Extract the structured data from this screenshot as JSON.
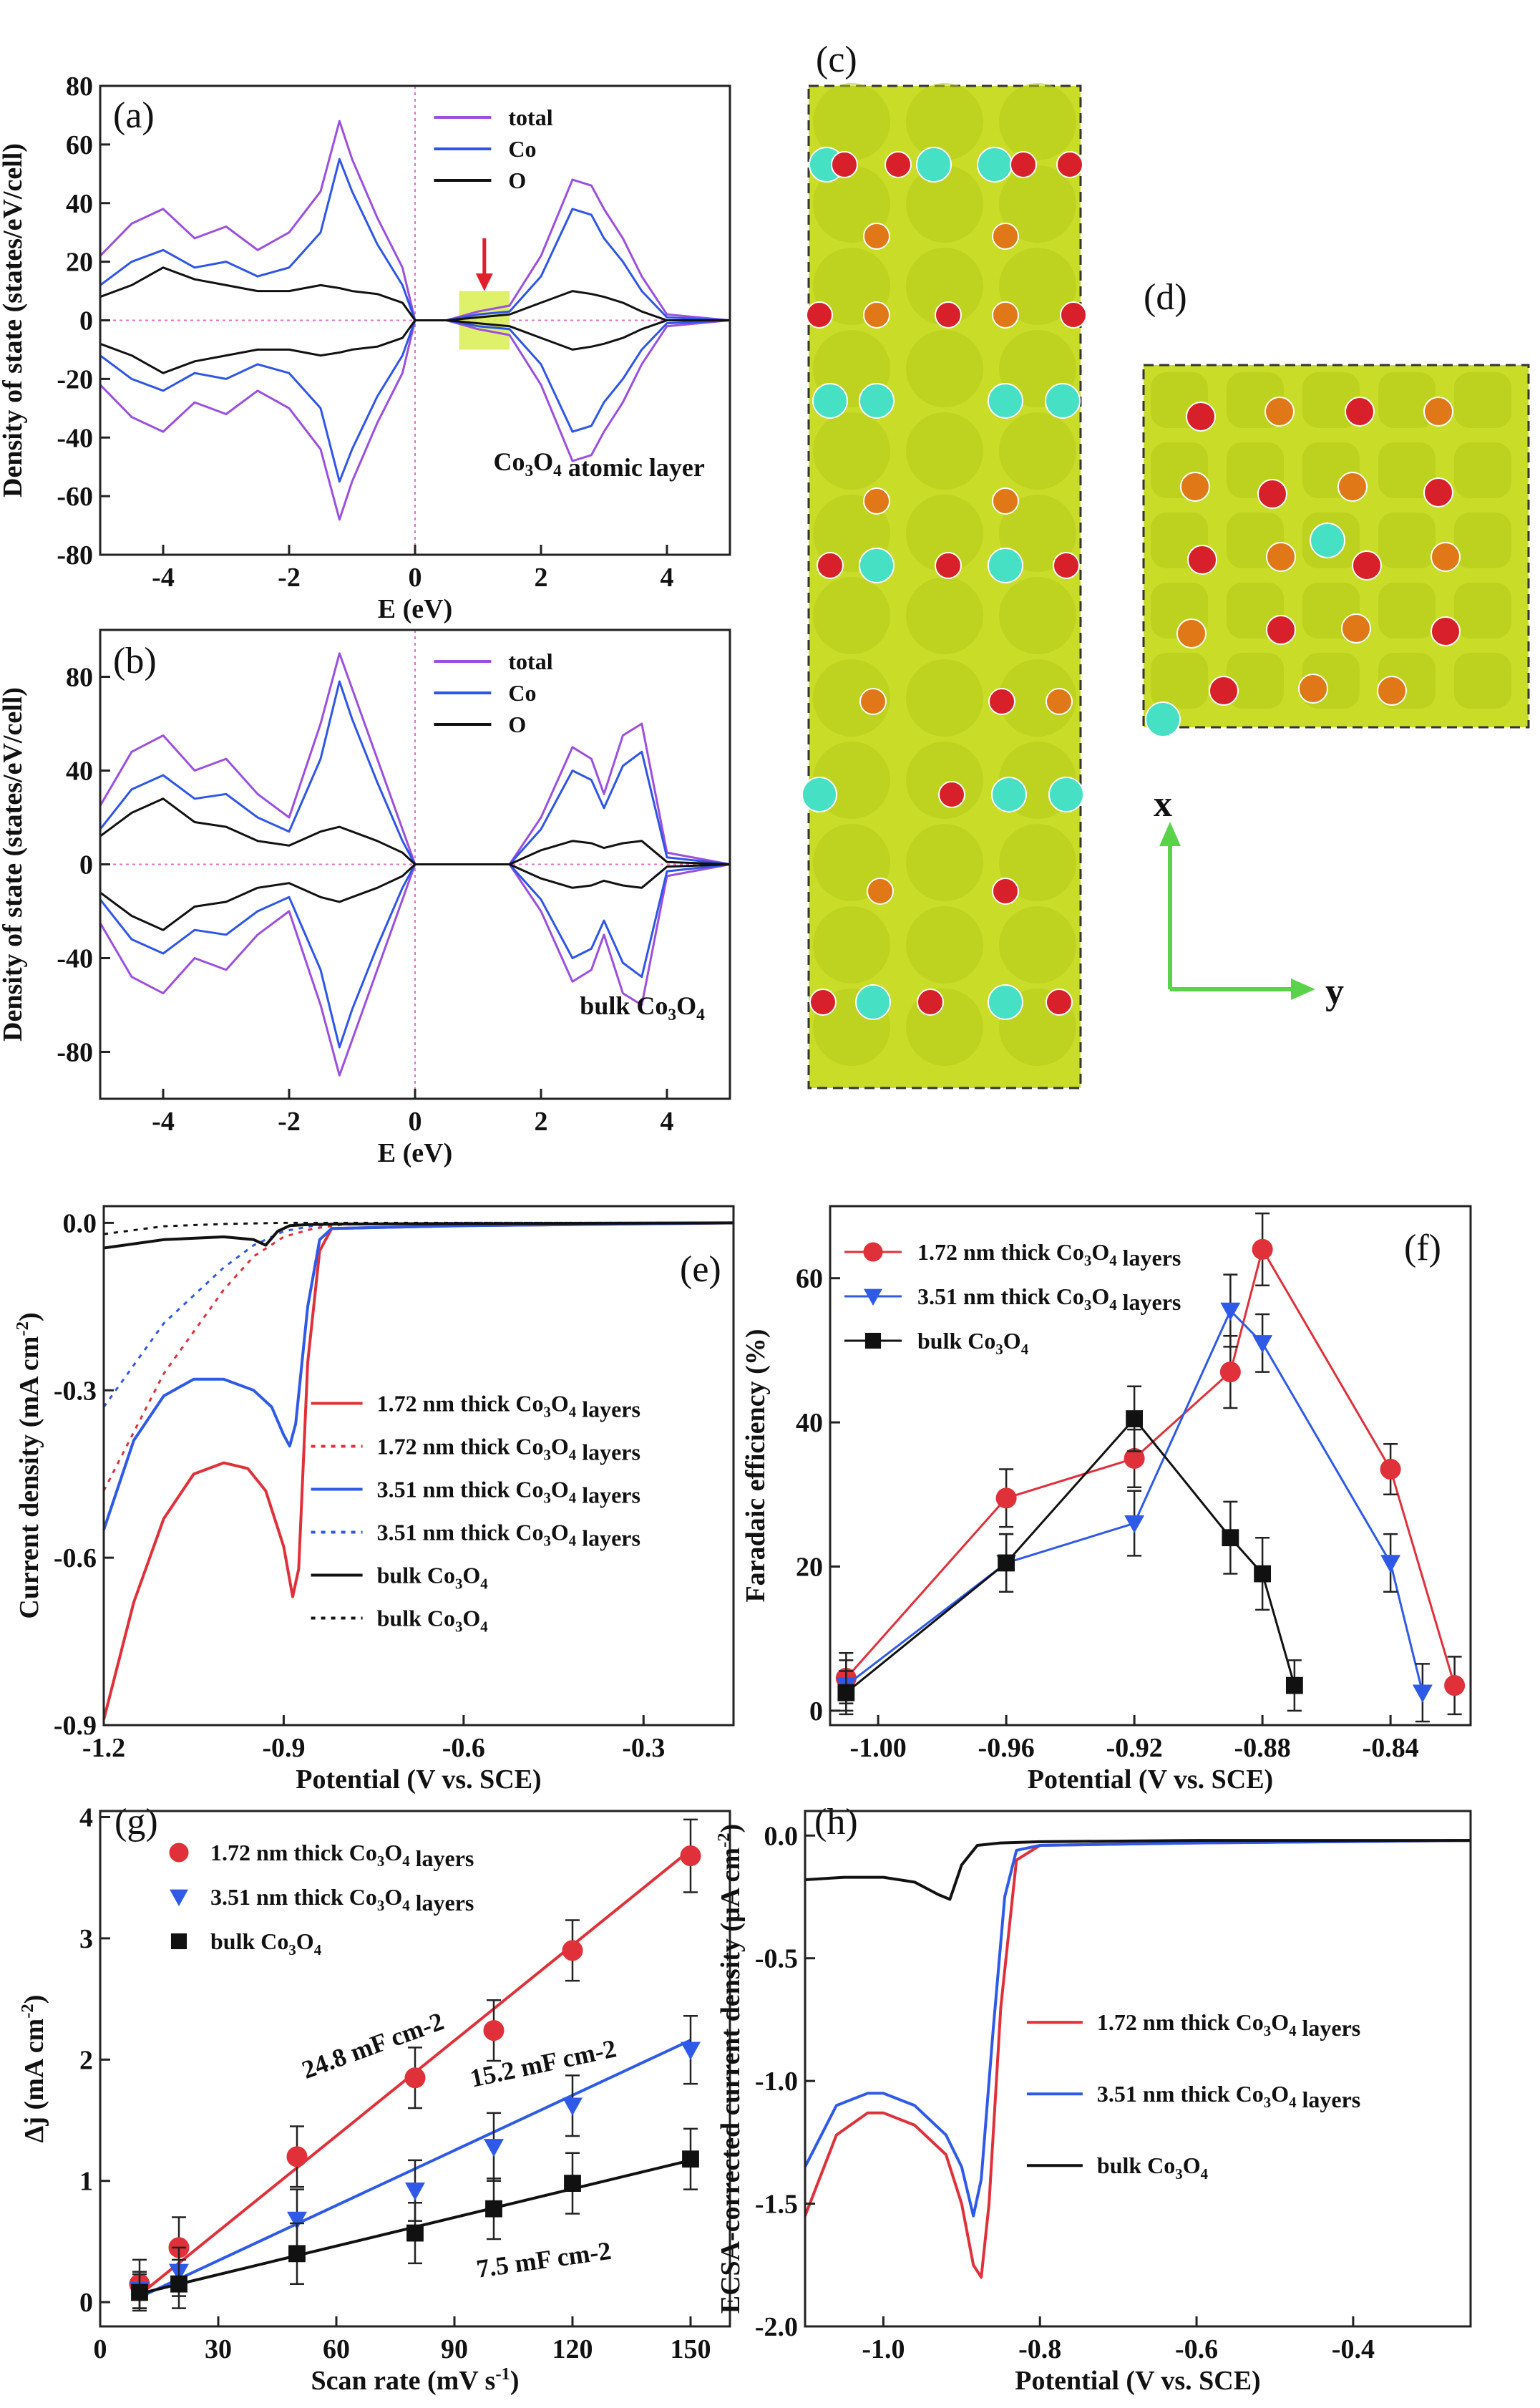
{
  "colors": {
    "total": "#9b4fe0",
    "co": "#2f55e8",
    "o": "#111111",
    "red": "#e0303a",
    "blue": "#2f5ae8",
    "black": "#111111",
    "iso": "#c8dc28",
    "co_atom": "#46e0c4",
    "o_atom": "#d8202a",
    "orange_atom": "#e07818",
    "axis_green": "#5ad24a"
  },
  "panels": {
    "a": "(a)",
    "b": "(b)",
    "c": "(c)",
    "d": "(d)",
    "e": "(e)",
    "f": "(f)",
    "g": "(g)",
    "h": "(h)"
  },
  "structure": {
    "x_axis": "x",
    "y_axis": "y",
    "panel_c": "Charge density isosurface, side view",
    "panel_d": "Charge density isosurface, top view"
  },
  "chart_data": [
    {
      "id": "a",
      "type": "line",
      "xlabel": "E (eV)",
      "ylabel": "Density of state (states/eV/cell)",
      "xlim": [
        -5,
        5
      ],
      "ylim": [
        -80,
        80
      ],
      "xticks": [
        "-4",
        "-2",
        "0",
        "2",
        "4"
      ],
      "yticks": [
        "-80",
        "-60",
        "-40",
        "-20",
        "0",
        "20",
        "40",
        "60",
        "80"
      ],
      "tick_values_y": [
        -80,
        -60,
        -40,
        -20,
        0,
        20,
        40,
        60,
        80
      ],
      "legend": [
        "total",
        "Co",
        "O"
      ],
      "annotation": "Co3O4 atomic layer",
      "annotation_parts": [
        "Co",
        "3",
        "O",
        "4",
        " atomic layer"
      ],
      "highlight_range": [
        0.7,
        1.5
      ],
      "series": [
        {
          "name": "total",
          "x": [
            -5,
            -4.5,
            -4,
            -3.5,
            -3,
            -2.5,
            -2,
            -1.5,
            -1.2,
            -1,
            -0.6,
            -0.2,
            0,
            0.5,
            1,
            1.5,
            2,
            2.5,
            2.8,
            3,
            3.3,
            3.6,
            4,
            5
          ],
          "values": [
            22,
            33,
            38,
            28,
            32,
            24,
            30,
            44,
            68,
            55,
            35,
            18,
            0,
            0,
            3,
            5,
            22,
            48,
            46,
            38,
            28,
            15,
            2,
            0
          ]
        },
        {
          "name": "Co",
          "x": [
            -5,
            -4.5,
            -4,
            -3.5,
            -3,
            -2.5,
            -2,
            -1.5,
            -1.2,
            -1,
            -0.6,
            -0.2,
            0,
            0.5,
            1,
            1.5,
            2,
            2.5,
            2.8,
            3,
            3.3,
            3.6,
            4,
            5
          ],
          "values": [
            12,
            20,
            24,
            18,
            20,
            15,
            18,
            30,
            55,
            44,
            26,
            12,
            0,
            0,
            2,
            3,
            15,
            38,
            36,
            28,
            20,
            10,
            1,
            0
          ]
        },
        {
          "name": "O",
          "x": [
            -5,
            -4.5,
            -4,
            -3.5,
            -3,
            -2.5,
            -2,
            -1.5,
            -1.2,
            -1,
            -0.6,
            -0.2,
            0,
            0.5,
            1,
            1.5,
            2,
            2.5,
            2.8,
            3,
            3.3,
            3.6,
            4,
            5
          ],
          "values": [
            8,
            12,
            18,
            14,
            12,
            10,
            10,
            12,
            11,
            10,
            9,
            6,
            0,
            0,
            1,
            2,
            6,
            10,
            9,
            8,
            6,
            3,
            0,
            0
          ]
        }
      ]
    },
    {
      "id": "b",
      "type": "line",
      "xlabel": "E (eV)",
      "ylabel": "Density of state (states/eV/cell)",
      "xlim": [
        -5,
        5
      ],
      "ylim": [
        -100,
        100
      ],
      "xticks": [
        "-4",
        "-2",
        "0",
        "2",
        "4"
      ],
      "yticks": [
        "-80",
        "-40",
        "0",
        "40",
        "80"
      ],
      "tick_values_y": [
        -80,
        -40,
        0,
        40,
        80
      ],
      "legend": [
        "total",
        "Co",
        "O"
      ],
      "annotation": "bulk Co3O4",
      "annotation_parts": [
        "bulk Co",
        "3",
        "O",
        "4",
        ""
      ],
      "series": [
        {
          "name": "total",
          "x": [
            -5,
            -4.5,
            -4,
            -3.5,
            -3,
            -2.5,
            -2,
            -1.5,
            -1.2,
            -1,
            -0.6,
            -0.2,
            0,
            0.5,
            1,
            1.5,
            2,
            2.5,
            2.8,
            3,
            3.3,
            3.6,
            4,
            5
          ],
          "values": [
            25,
            48,
            55,
            40,
            45,
            30,
            20,
            60,
            90,
            75,
            45,
            15,
            0,
            0,
            0,
            0,
            20,
            50,
            45,
            30,
            55,
            60,
            5,
            0
          ]
        },
        {
          "name": "Co",
          "x": [
            -5,
            -4.5,
            -4,
            -3.5,
            -3,
            -2.5,
            -2,
            -1.5,
            -1.2,
            -1,
            -0.6,
            -0.2,
            0,
            0.5,
            1,
            1.5,
            2,
            2.5,
            2.8,
            3,
            3.3,
            3.6,
            4,
            5
          ],
          "values": [
            15,
            32,
            38,
            28,
            30,
            20,
            14,
            45,
            78,
            62,
            35,
            10,
            0,
            0,
            0,
            0,
            15,
            40,
            36,
            24,
            42,
            48,
            3,
            0
          ]
        },
        {
          "name": "O",
          "x": [
            -5,
            -4.5,
            -4,
            -3.5,
            -3,
            -2.5,
            -2,
            -1.5,
            -1.2,
            -1,
            -0.6,
            -0.2,
            0,
            0.5,
            1,
            1.5,
            2,
            2.5,
            2.8,
            3,
            3.3,
            3.6,
            4,
            5
          ],
          "values": [
            12,
            22,
            28,
            18,
            16,
            10,
            8,
            14,
            16,
            14,
            10,
            5,
            0,
            0,
            0,
            0,
            6,
            10,
            9,
            7,
            9,
            10,
            1,
            0
          ]
        }
      ]
    },
    {
      "id": "e",
      "type": "line",
      "xlabel": "Potential (V vs. SCE)",
      "ylabel": "Current density (mA cm-2)",
      "xlim": [
        -1.2,
        -0.15
      ],
      "ylim": [
        -0.9,
        0.03
      ],
      "xticks": [
        "-1.2",
        "-0.9",
        "-0.6",
        "-0.3"
      ],
      "tick_values_x": [
        -1.2,
        -0.9,
        -0.6,
        -0.3
      ],
      "yticks": [
        "-0.9",
        "-0.6",
        "-0.3",
        "0.0"
      ],
      "tick_values_y": [
        -0.9,
        -0.6,
        -0.3,
        0.0
      ],
      "legend": [
        "1.72 nm thick Co3O4 layers",
        "1.72 nm thick Co3O4 layers",
        "3.51 nm thick Co3O4 layers",
        "3.51 nm thick Co3O4 layers",
        "bulk Co3O4",
        "bulk Co3O4"
      ],
      "series": [
        {
          "name": "1.72 nm solid",
          "style": "solid",
          "color": "red",
          "x": [
            -1.2,
            -1.15,
            -1.1,
            -1.05,
            -1.0,
            -0.96,
            -0.93,
            -0.9,
            -0.885,
            -0.875,
            -0.86,
            -0.84,
            -0.82,
            -0.6,
            -0.15
          ],
          "values": [
            -0.89,
            -0.68,
            -0.53,
            -0.45,
            -0.43,
            -0.44,
            -0.48,
            -0.58,
            -0.67,
            -0.62,
            -0.25,
            -0.05,
            -0.01,
            -0.005,
            0.0
          ]
        },
        {
          "name": "1.72 nm dotted",
          "style": "dotted",
          "color": "red",
          "x": [
            -1.2,
            -1.1,
            -1.0,
            -0.95,
            -0.9,
            -0.85,
            -0.8,
            -0.6,
            -0.15
          ],
          "values": [
            -0.48,
            -0.27,
            -0.12,
            -0.06,
            -0.025,
            -0.01,
            -0.003,
            0.0,
            0.0
          ]
        },
        {
          "name": "3.51 nm solid",
          "style": "solid",
          "color": "blue",
          "x": [
            -1.2,
            -1.15,
            -1.1,
            -1.05,
            -1.0,
            -0.95,
            -0.92,
            -0.9,
            -0.89,
            -0.88,
            -0.86,
            -0.84,
            -0.82,
            -0.6,
            -0.15
          ],
          "values": [
            -0.55,
            -0.39,
            -0.31,
            -0.28,
            -0.28,
            -0.3,
            -0.33,
            -0.38,
            -0.4,
            -0.36,
            -0.15,
            -0.03,
            -0.01,
            -0.005,
            0.0
          ]
        },
        {
          "name": "3.51 nm dotted",
          "style": "dotted",
          "color": "blue",
          "x": [
            -1.2,
            -1.1,
            -1.0,
            -0.95,
            -0.9,
            -0.85,
            -0.8,
            -0.6,
            -0.15
          ],
          "values": [
            -0.33,
            -0.18,
            -0.08,
            -0.04,
            -0.015,
            -0.005,
            -0.002,
            0.0,
            0.0
          ]
        },
        {
          "name": "bulk solid",
          "style": "solid",
          "color": "black",
          "x": [
            -1.2,
            -1.1,
            -1.0,
            -0.95,
            -0.93,
            -0.91,
            -0.89,
            -0.86,
            -0.8,
            -0.15
          ],
          "values": [
            -0.045,
            -0.03,
            -0.025,
            -0.03,
            -0.04,
            -0.015,
            -0.005,
            -0.003,
            -0.002,
            0.0
          ]
        },
        {
          "name": "bulk dotted",
          "style": "dotted",
          "color": "black",
          "x": [
            -1.2,
            -1.1,
            -1.0,
            -0.9,
            -0.8,
            -0.15
          ],
          "values": [
            -0.02,
            -0.006,
            -0.002,
            0.0,
            0.0,
            0.0
          ]
        }
      ]
    },
    {
      "id": "f",
      "type": "line",
      "xlabel": "Potential (V vs. SCE)",
      "ylabel": "Faradaic efficiency (%)",
      "xlim": [
        -1.015,
        -0.815
      ],
      "ylim": [
        -2,
        70
      ],
      "xticks": [
        "-1.00",
        "-0.96",
        "-0.92",
        "-0.88",
        "-0.84"
      ],
      "tick_values_x": [
        -1.0,
        -0.96,
        -0.92,
        -0.88,
        -0.84
      ],
      "yticks": [
        "0",
        "20",
        "40",
        "60"
      ],
      "tick_values_y": [
        0,
        20,
        40,
        60
      ],
      "legend": [
        "1.72 nm thick Co3O4 layers",
        "3.51 nm thick Co3O4 layers",
        "bulk Co3O4"
      ],
      "series": [
        {
          "name": "1.72 nm thick Co3O4 layers",
          "marker": "circle",
          "color": "red",
          "x": [
            -1.01,
            -0.96,
            -0.92,
            -0.89,
            -0.88,
            -0.84,
            -0.82
          ],
          "values": [
            4.5,
            29.5,
            35,
            47,
            64,
            33.5,
            3.5
          ],
          "err": [
            3.5,
            4,
            4,
            5,
            5,
            3.5,
            4
          ]
        },
        {
          "name": "3.51 nm thick Co3O4 layers",
          "marker": "triangle",
          "color": "blue",
          "x": [
            -1.01,
            -0.96,
            -0.92,
            -0.89,
            -0.88,
            -0.84,
            -0.83
          ],
          "values": [
            3.5,
            20.5,
            26,
            55.5,
            51,
            20.5,
            2.5
          ],
          "err": [
            3.5,
            4,
            4.5,
            5,
            4,
            4,
            4
          ]
        },
        {
          "name": "bulk Co3O4",
          "marker": "square",
          "color": "black",
          "x": [
            -1.01,
            -0.96,
            -0.92,
            -0.89,
            -0.88,
            -0.87
          ],
          "values": [
            2.5,
            20.5,
            40.5,
            24,
            19,
            3.5
          ],
          "err": [
            3,
            4,
            4.5,
            5,
            5,
            3.5
          ]
        }
      ]
    },
    {
      "id": "g",
      "type": "scatter",
      "xlabel": "Scan rate (mV s-1)",
      "ylabel": "Δj (mA cm-2)",
      "xlim": [
        0,
        160
      ],
      "ylim": [
        -0.2,
        4.05
      ],
      "xticks": [
        "0",
        "30",
        "60",
        "90",
        "120",
        "150"
      ],
      "tick_values_x": [
        0,
        30,
        60,
        90,
        120,
        150
      ],
      "yticks": [
        "0",
        "1",
        "2",
        "3",
        "4"
      ],
      "tick_values_y": [
        0,
        1,
        2,
        3,
        4
      ],
      "legend": [
        "1.72 nm thick Co3O4 layers",
        "3.51 nm thick Co3O4 layers",
        "bulk Co3O4"
      ],
      "annotations": [
        "24.8 mF cm-2",
        "15.2 mF cm-2",
        "7.5 mF cm-2"
      ],
      "series": [
        {
          "name": "1.72 nm thick Co3O4 layers",
          "marker": "circle",
          "color": "red",
          "x": [
            10,
            20,
            50,
            80,
            100,
            120,
            150
          ],
          "values": [
            0.15,
            0.45,
            1.2,
            1.85,
            2.24,
            2.9,
            3.68
          ],
          "err": [
            0.2,
            0.25,
            0.25,
            0.25,
            0.25,
            0.25,
            0.3
          ],
          "fit": [
            0.06,
            3.73
          ]
        },
        {
          "name": "3.51 nm thick Co3O4 layers",
          "marker": "triangle",
          "color": "blue",
          "x": [
            10,
            20,
            50,
            80,
            100,
            120,
            150
          ],
          "values": [
            0.1,
            0.25,
            0.68,
            0.92,
            1.28,
            1.62,
            2.08
          ],
          "err": [
            0.15,
            0.2,
            0.25,
            0.25,
            0.28,
            0.25,
            0.28
          ],
          "fit": [
            0.04,
            2.16
          ]
        },
        {
          "name": "bulk Co3O4",
          "marker": "square",
          "color": "black",
          "x": [
            10,
            20,
            50,
            80,
            100,
            120,
            150
          ],
          "values": [
            0.08,
            0.15,
            0.4,
            0.57,
            0.77,
            0.98,
            1.18
          ],
          "err": [
            0.15,
            0.2,
            0.25,
            0.25,
            0.25,
            0.25,
            0.25
          ],
          "fit": [
            0.07,
            1.17
          ]
        }
      ]
    },
    {
      "id": "h",
      "type": "line",
      "xlabel": "Potential (V vs. SCE)",
      "ylabel": "ECSA-corrected current density (μA cm-2)",
      "xlim": [
        -1.1,
        -0.25
      ],
      "ylim": [
        -2.0,
        0.1
      ],
      "xticks": [
        "-1.0",
        "-0.8",
        "-0.6",
        "-0.4"
      ],
      "tick_values_x": [
        -1.0,
        -0.8,
        -0.6,
        -0.4
      ],
      "yticks": [
        "-2.0",
        "-1.5",
        "-1.0",
        "-0.5",
        "0.0"
      ],
      "tick_values_y": [
        -2.0,
        -1.5,
        -1.0,
        -0.5,
        0.0
      ],
      "legend": [
        "1.72 nm thick Co3O4 layers",
        "3.51 nm thick Co3O4 layers",
        "bulk Co3O4"
      ],
      "series": [
        {
          "name": "1.72 nm thick Co3O4 layers",
          "color": "red",
          "x": [
            -1.1,
            -1.06,
            -1.02,
            -1.0,
            -0.96,
            -0.92,
            -0.9,
            -0.885,
            -0.875,
            -0.865,
            -0.85,
            -0.83,
            -0.8,
            -0.6,
            -0.25
          ],
          "values": [
            -1.55,
            -1.22,
            -1.13,
            -1.13,
            -1.18,
            -1.3,
            -1.5,
            -1.75,
            -1.8,
            -1.5,
            -0.7,
            -0.1,
            -0.04,
            -0.03,
            -0.02
          ]
        },
        {
          "name": "3.51 nm thick Co3O4 layers",
          "color": "blue",
          "x": [
            -1.1,
            -1.06,
            -1.02,
            -1.0,
            -0.96,
            -0.92,
            -0.9,
            -0.885,
            -0.875,
            -0.86,
            -0.845,
            -0.83,
            -0.8,
            -0.6,
            -0.25
          ],
          "values": [
            -1.35,
            -1.1,
            -1.05,
            -1.05,
            -1.1,
            -1.22,
            -1.35,
            -1.55,
            -1.4,
            -0.8,
            -0.25,
            -0.06,
            -0.04,
            -0.03,
            -0.02
          ]
        },
        {
          "name": "bulk Co3O4",
          "color": "black",
          "x": [
            -1.1,
            -1.05,
            -1.0,
            -0.96,
            -0.93,
            -0.915,
            -0.9,
            -0.88,
            -0.85,
            -0.8,
            -0.6,
            -0.25
          ],
          "values": [
            -0.18,
            -0.17,
            -0.17,
            -0.19,
            -0.24,
            -0.26,
            -0.12,
            -0.04,
            -0.03,
            -0.025,
            -0.02,
            -0.02
          ]
        }
      ]
    }
  ]
}
